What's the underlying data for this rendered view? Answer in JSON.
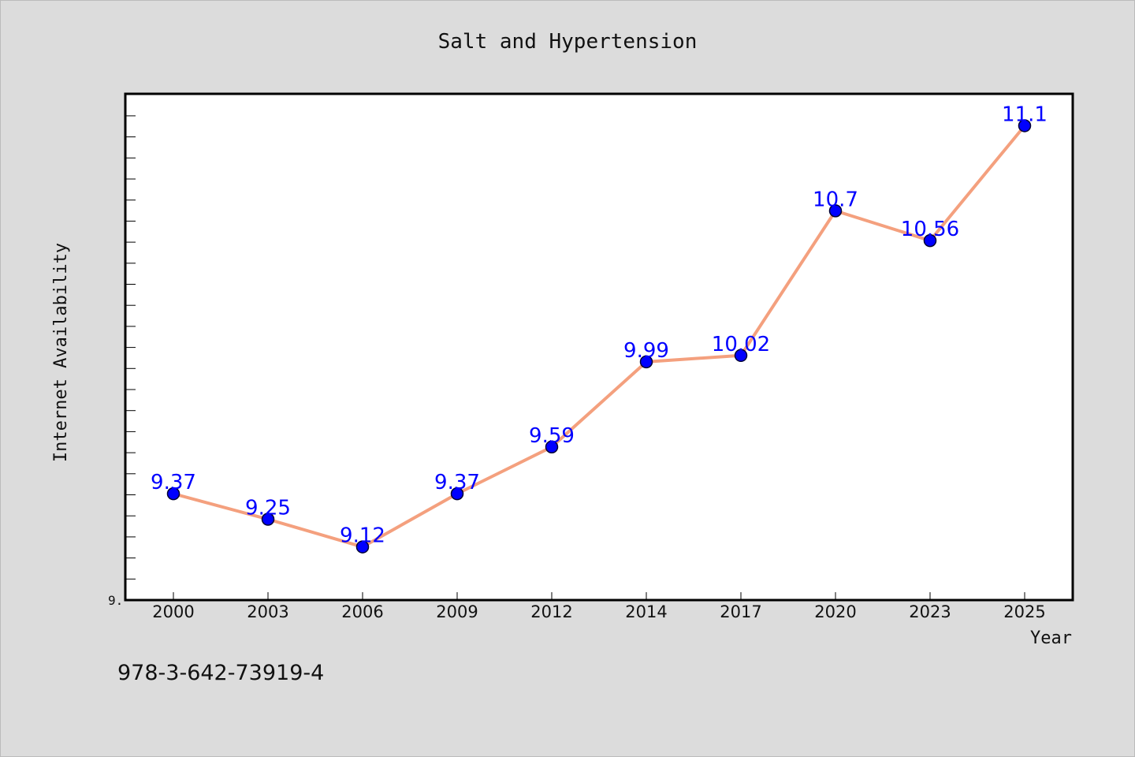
{
  "chart_data": {
    "type": "line",
    "title": "Salt and Hypertension",
    "xlabel": "Year",
    "ylabel": "Internet Availability",
    "categories": [
      "2000",
      "2003",
      "2006",
      "2009",
      "2012",
      "2014",
      "2017",
      "2020",
      "2023",
      "2025"
    ],
    "series": [
      {
        "values": [
          9.37,
          9.25,
          9.12,
          9.37,
          9.59,
          9.99,
          10.02,
          10.7,
          10.56,
          11.1
        ],
        "labels": [
          "9.37",
          "9.25",
          "9.12",
          "9.37",
          "9.59",
          "9.99",
          "10.02",
          "10.7",
          "10.56",
          "11.1"
        ]
      }
    ],
    "ylim": [
      8.87,
      11.25
    ],
    "ytick_label": "9.",
    "grid": false,
    "colors": {
      "line": "#f4a07e",
      "marker": "#0000ff",
      "data_label": "#0000ff",
      "background": "#dcdcdc",
      "plot_background": "#ffffff"
    }
  },
  "footer": {
    "isbn": "978-3-642-73919-4"
  }
}
